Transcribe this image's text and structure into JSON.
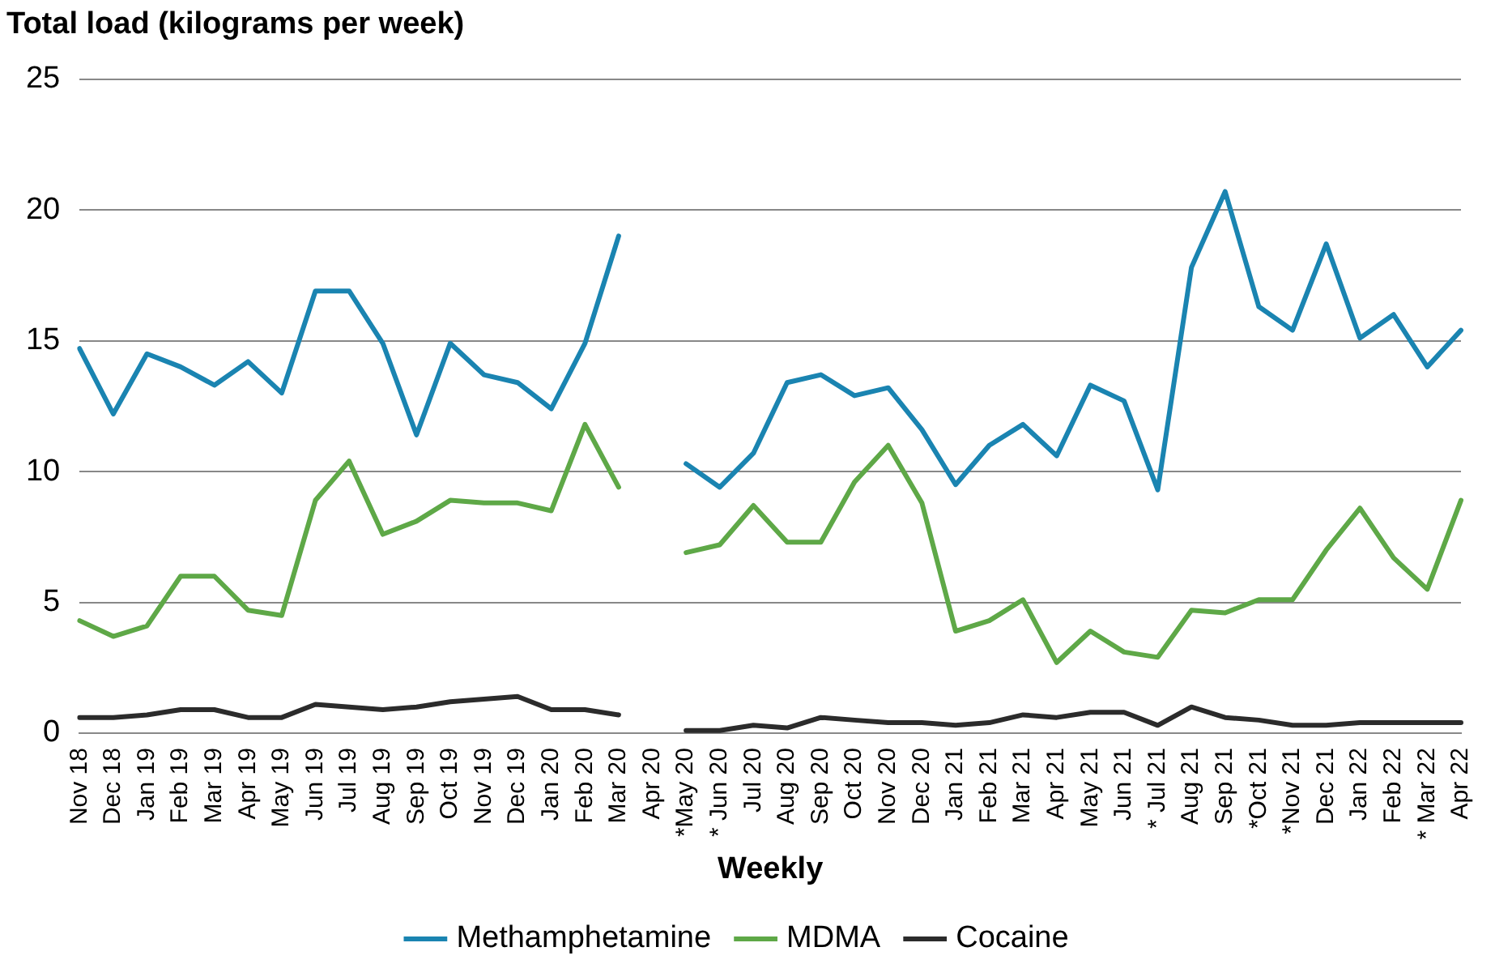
{
  "chart_data": {
    "type": "line",
    "title": "Total load (kilograms per week)",
    "xlabel": "Weekly",
    "categories": [
      "Nov 18",
      "Dec 18",
      "Jan 19",
      "Feb 19",
      "Mar 19",
      "Apr 19",
      "May 19",
      "Jun 19",
      "Jul 19",
      "Aug 19",
      "Sep 19",
      "Oct 19",
      "Nov 19",
      "Dec 19",
      "Jan 20",
      "Feb 20",
      "Mar 20",
      "Apr 20",
      "*May 20",
      "* Jun 20",
      "Jul 20",
      "Aug 20",
      "Sep 20",
      "Oct 20",
      "Nov 20",
      "Dec 20",
      "Jan 21",
      "Feb 21",
      "Mar 21",
      "Apr 21",
      "May 21",
      "Jun 21",
      "* Jul 21",
      "Aug 21",
      "Sep 21",
      "*Oct 21",
      "*Nov 21",
      "Dec 21",
      "Jan 22",
      "Feb 22",
      "* Mar 22",
      "Apr 22"
    ],
    "series": [
      {
        "name": "Methamphetamine",
        "color": "#1a84b1",
        "values": [
          14.7,
          12.2,
          14.5,
          14.0,
          13.3,
          14.2,
          13.0,
          16.9,
          16.9,
          14.9,
          11.4,
          14.9,
          13.7,
          13.4,
          12.4,
          14.9,
          19.0,
          null,
          10.3,
          9.4,
          10.7,
          13.4,
          13.7,
          12.9,
          13.2,
          11.6,
          9.5,
          11.0,
          11.8,
          10.6,
          13.3,
          12.7,
          9.3,
          17.8,
          20.7,
          16.3,
          15.4,
          18.7,
          15.1,
          16.0,
          14.0,
          15.4
        ]
      },
      {
        "name": "MDMA",
        "color": "#5ea847",
        "values": [
          4.3,
          3.7,
          4.1,
          6.0,
          6.0,
          4.7,
          4.5,
          8.9,
          10.4,
          7.6,
          8.1,
          8.9,
          8.8,
          8.8,
          8.5,
          11.8,
          9.4,
          null,
          6.9,
          7.2,
          8.7,
          7.3,
          7.3,
          9.6,
          11.0,
          8.8,
          3.9,
          4.3,
          5.1,
          2.7,
          3.9,
          3.1,
          2.9,
          4.7,
          4.6,
          5.1,
          5.1,
          7.0,
          8.6,
          6.7,
          5.5,
          8.9
        ]
      },
      {
        "name": "Cocaine",
        "color": "#2b2b2b",
        "values": [
          0.6,
          0.6,
          0.7,
          0.9,
          0.9,
          0.6,
          0.6,
          1.1,
          1.0,
          0.9,
          1.0,
          1.2,
          1.3,
          1.4,
          0.9,
          0.9,
          0.7,
          null,
          0.1,
          0.1,
          0.3,
          0.2,
          0.6,
          0.5,
          0.4,
          0.4,
          0.3,
          0.4,
          0.7,
          0.6,
          0.8,
          0.8,
          0.3,
          1.0,
          0.6,
          0.5,
          0.3,
          0.3,
          0.4,
          0.4,
          0.4,
          0.4
        ]
      }
    ],
    "ylim": [
      0,
      25
    ],
    "yticks": [
      0,
      5,
      10,
      15,
      20,
      25
    ],
    "grid": "y",
    "legend": "bottom",
    "marker": "none",
    "line_style": "solid"
  }
}
